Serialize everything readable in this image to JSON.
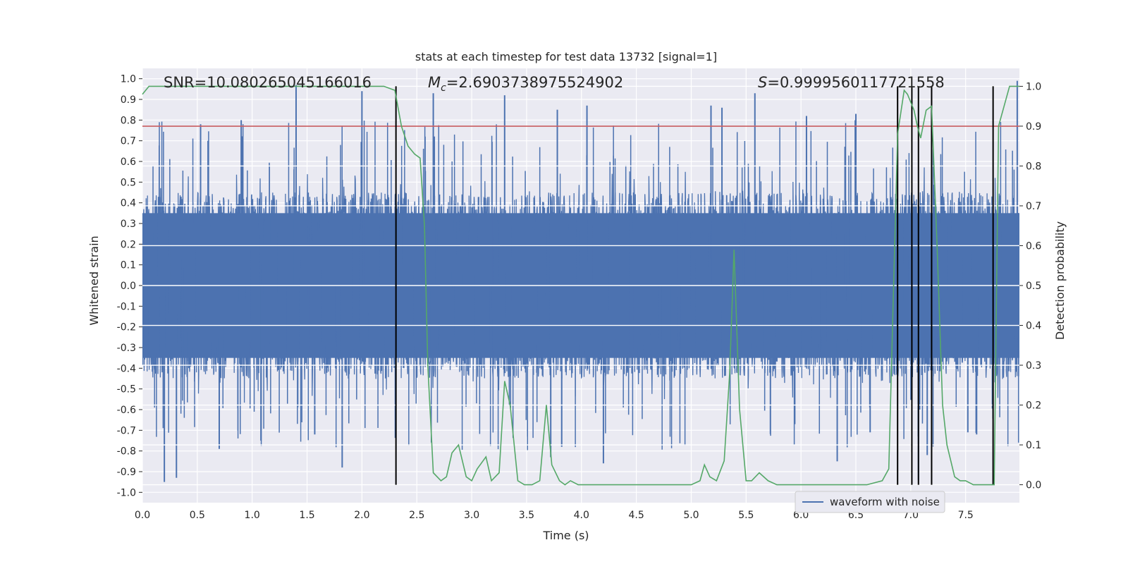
{
  "chart_data": {
    "type": "line",
    "title": "stats at each timestep for test data 13732 [signal=1]",
    "xlabel": "Time (s)",
    "ylabel": "Whitened strain",
    "y2label": "Detection probability",
    "xlim": [
      0.0,
      7.99
    ],
    "ylim": [
      -1.05,
      1.05
    ],
    "y2lim": [
      -0.045,
      1.045
    ],
    "x_ticks": [
      0.0,
      0.5,
      1.0,
      1.5,
      2.0,
      2.5,
      3.0,
      3.5,
      4.0,
      4.5,
      5.0,
      5.5,
      6.0,
      6.5,
      7.0,
      7.5
    ],
    "x_tick_labels": [
      "0.0",
      "0.5",
      "1.0",
      "1.5",
      "2.0",
      "2.5",
      "3.0",
      "3.5",
      "4.0",
      "4.5",
      "5.0",
      "5.5",
      "6.0",
      "6.5",
      "7.0",
      "7.5"
    ],
    "y_ticks": [
      1.0,
      0.9,
      0.8,
      0.7,
      0.6,
      0.5,
      0.4,
      0.3,
      0.2,
      0.1,
      0.0,
      -0.1,
      -0.2,
      -0.3,
      -0.4,
      -0.5,
      -0.6,
      -0.7,
      -0.8,
      -0.9,
      -1.0
    ],
    "y_tick_labels": [
      "1.0",
      "0.9",
      "0.8",
      "0.7",
      "0.6",
      "0.5",
      "0.4",
      "0.3",
      "0.2",
      "0.1",
      "0.0",
      "-0.1",
      "-0.2",
      "-0.3",
      "-0.4",
      "-0.5",
      "-0.6",
      "-0.7",
      "-0.8",
      "-0.9",
      "-1.0"
    ],
    "y2_ticks": [
      1.0,
      0.9,
      0.8,
      0.7,
      0.6,
      0.5,
      0.4,
      0.3,
      0.2,
      0.1,
      0.0
    ],
    "y2_tick_labels": [
      "1.0",
      "0.9",
      "0.8",
      "0.7",
      "0.6",
      "0.5",
      "0.4",
      "0.3",
      "0.2",
      "0.1",
      "0.0"
    ],
    "grid": true,
    "annotations": {
      "snr": "SNR=10.080265045166016",
      "mc_symbol": "M",
      "mc_sub": "c",
      "mc_value": "=2.6903738975524902",
      "s_symbol": "S",
      "s_value": "=0.9999560117721558"
    },
    "threshold": {
      "value": 0.9,
      "axis": "right",
      "color": "#c44e52"
    },
    "detection_markers_s": [
      2.31,
      6.88,
      7.01,
      7.07,
      7.19,
      7.75
    ],
    "waveform": {
      "name": "waveform with noise",
      "color": "#4c72b0",
      "duration_s": 7.99,
      "typical_amplitude": 0.45,
      "peak_positive": 0.97,
      "peak_negative": -0.94
    },
    "waveform_spikes": [
      [
        0.2,
        -0.95
      ],
      [
        0.31,
        -0.93
      ],
      [
        0.53,
        0.78
      ],
      [
        0.7,
        -0.79
      ],
      [
        0.9,
        0.8
      ],
      [
        1.08,
        -0.75
      ],
      [
        1.4,
        0.97
      ],
      [
        1.57,
        -0.72
      ],
      [
        1.82,
        -0.88
      ],
      [
        2.0,
        0.94
      ],
      [
        2.65,
        0.93
      ],
      [
        3.3,
        0.92
      ],
      [
        3.72,
        -0.83
      ],
      [
        3.78,
        0.85
      ],
      [
        3.82,
        -0.78
      ],
      [
        4.05,
        0.87
      ],
      [
        4.2,
        -0.86
      ],
      [
        5.18,
        0.87
      ],
      [
        5.28,
        0.86
      ],
      [
        5.58,
        0.93
      ],
      [
        6.05,
        0.82
      ],
      [
        6.33,
        -0.85
      ],
      [
        6.5,
        0.83
      ],
      [
        6.63,
        -0.71
      ],
      [
        7.07,
        -0.94
      ],
      [
        7.15,
        -0.82
      ],
      [
        7.52,
        -0.71
      ],
      [
        7.6,
        -0.72
      ],
      [
        7.97,
        0.99
      ]
    ],
    "series": [
      {
        "name": "detection probability",
        "axis": "right",
        "color": "#55a868",
        "x": [
          0.0,
          0.06,
          0.3,
          0.6,
          0.9,
          1.2,
          1.5,
          1.8,
          2.1,
          2.2,
          2.3,
          2.36,
          2.42,
          2.48,
          2.53,
          2.57,
          2.6,
          2.65,
          2.72,
          2.77,
          2.82,
          2.88,
          2.95,
          3.0,
          3.05,
          3.13,
          3.18,
          3.25,
          3.3,
          3.35,
          3.42,
          3.48,
          3.55,
          3.62,
          3.68,
          3.73,
          3.8,
          3.85,
          3.9,
          3.97,
          4.1,
          4.3,
          4.5,
          4.7,
          4.9,
          5.0,
          5.08,
          5.12,
          5.17,
          5.23,
          5.3,
          5.35,
          5.39,
          5.44,
          5.5,
          5.55,
          5.62,
          5.7,
          5.78,
          6.0,
          6.3,
          6.6,
          6.74,
          6.8,
          6.88,
          6.94,
          6.97,
          7.03,
          7.06,
          7.09,
          7.14,
          7.19,
          7.24,
          7.29,
          7.33,
          7.4,
          7.45,
          7.5,
          7.57,
          7.64,
          7.72,
          7.76,
          7.8,
          7.85,
          7.9,
          7.95,
          7.99
        ],
        "values": [
          0.98,
          1.0,
          1.0,
          1.0,
          1.0,
          1.0,
          1.0,
          1.0,
          1.0,
          1.0,
          0.99,
          0.9,
          0.85,
          0.83,
          0.82,
          0.65,
          0.3,
          0.03,
          0.01,
          0.02,
          0.08,
          0.1,
          0.02,
          0.01,
          0.04,
          0.07,
          0.01,
          0.03,
          0.26,
          0.2,
          0.01,
          0.0,
          0.0,
          0.01,
          0.2,
          0.05,
          0.01,
          0.0,
          0.01,
          0.0,
          0.0,
          0.0,
          0.0,
          0.0,
          0.0,
          0.0,
          0.01,
          0.05,
          0.02,
          0.01,
          0.06,
          0.28,
          0.59,
          0.19,
          0.01,
          0.01,
          0.03,
          0.01,
          0.0,
          0.0,
          0.0,
          0.0,
          0.01,
          0.04,
          0.88,
          0.99,
          0.98,
          0.94,
          0.9,
          0.87,
          0.94,
          0.95,
          0.6,
          0.2,
          0.1,
          0.02,
          0.01,
          0.01,
          0.0,
          0.0,
          0.0,
          0.0,
          0.9,
          0.95,
          1.0,
          1.0,
          1.0
        ]
      }
    ],
    "legend": {
      "entries": [
        "waveform with noise"
      ],
      "placement": "lower-right"
    }
  }
}
